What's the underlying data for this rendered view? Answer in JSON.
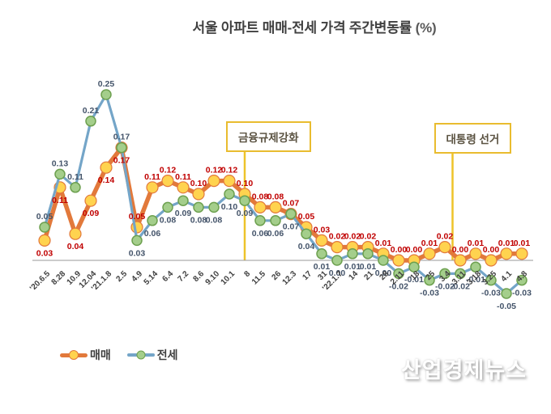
{
  "title": {
    "text": "서울 아파트 매매-전세 가격 주간변동률",
    "unit": "(%)"
  },
  "legend": [
    {
      "label": "매매"
    },
    {
      "label": "전세"
    }
  ],
  "watermark": "산업경제뉴스",
  "annotations": [
    {
      "label": "금융규제강화",
      "category_index": 13,
      "anchor_category": "8"
    },
    {
      "label": "대통령 선거",
      "category_index": 26.5,
      "anchor_category": "3.4 ~ 3.11"
    }
  ],
  "colors": {
    "sale_line": "#e2793b",
    "sale_marker_fill": "#ffd34f",
    "sale_label": "#c00000",
    "jeonse_line": "#74a5c8",
    "jeonse_marker_fill": "#a4ce8b",
    "jeonse_marker_stroke": "#6da04f",
    "jeonse_label": "#44546a",
    "annotation_line": "#eec32a",
    "axis": "#9a9a9a",
    "tick_text": "#3f3f3f"
  },
  "chart_data": {
    "type": "line",
    "title": "서울 아파트 매매-전세 가격 주간변동률 (%)",
    "xlabel": "",
    "ylabel": "",
    "ylim": [
      -0.08,
      0.28
    ],
    "grid": false,
    "legend_position": "bottom-left",
    "categories": [
      "'20.6.5",
      "8.28",
      "10.9",
      "12.04",
      "'21.1.8",
      "2.5",
      "4.9",
      "5.14",
      "6.4",
      "7.2",
      "8.6",
      "9.10",
      "10.1",
      "8",
      "11.5",
      "26",
      "12.3",
      "17",
      "31",
      "'22.1.7",
      "14",
      "21",
      "28",
      "2.11",
      "18",
      "25",
      "3.4",
      "3.11",
      "3.18",
      "3.25",
      "4.1",
      "4.8"
    ],
    "series": [
      {
        "name": "매매",
        "values": [
          0.03,
          0.11,
          0.04,
          0.09,
          0.14,
          0.17,
          0.05,
          0.11,
          0.12,
          0.11,
          0.1,
          0.12,
          0.12,
          0.1,
          0.08,
          0.08,
          0.07,
          0.05,
          0.03,
          0.02,
          0.02,
          0.02,
          0.01,
          0.0,
          0.0,
          0.01,
          0.02,
          0.0,
          0.01,
          0.0,
          0.01,
          0.01
        ]
      },
      {
        "name": "전세",
        "values": [
          0.05,
          0.13,
          0.11,
          0.21,
          0.25,
          0.17,
          0.03,
          0.06,
          0.08,
          0.09,
          0.08,
          0.08,
          0.1,
          0.09,
          0.06,
          0.06,
          0.07,
          0.04,
          0.01,
          0.0,
          0.01,
          0.01,
          0.0,
          -0.02,
          -0.01,
          -0.03,
          -0.02,
          -0.02,
          -0.01,
          -0.03,
          -0.05,
          -0.03
        ]
      }
    ]
  }
}
